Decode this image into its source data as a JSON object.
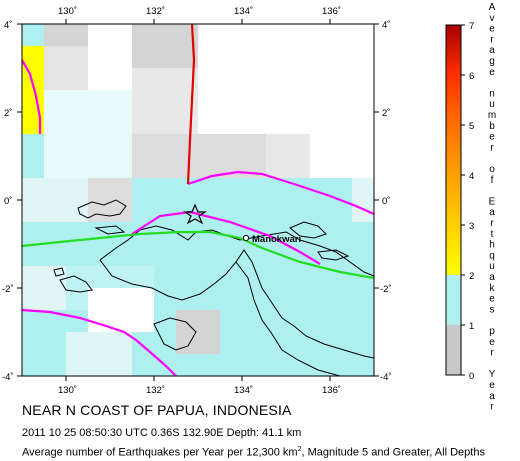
{
  "map": {
    "lon_ticks": [
      "130˚",
      "132˚",
      "134˚",
      "136˚"
    ],
    "lat_ticks": [
      "4˚",
      "2˚",
      "0˚",
      "-2˚",
      "-4˚"
    ],
    "place_label": "Manokwari",
    "colors": {
      "cell_low": "#c8c8c8",
      "cell_mid": "#aef0f0",
      "cell_high": "#ffff00",
      "plate_boundary": "#ff00ff",
      "fault": "#00e000",
      "trench": "#e00000",
      "coast": "#000000"
    },
    "epicenter_icon": "star-icon",
    "city_icon": "circle-icon"
  },
  "legend": {
    "ticks": [
      "7",
      "6",
      "5",
      "4",
      "3",
      "2",
      "1",
      "0"
    ],
    "title_chars": [
      "A",
      "v",
      "e",
      "r",
      "a",
      "g",
      "e",
      "",
      "n",
      "u",
      "m",
      "b",
      "e",
      "r",
      "",
      "o",
      "f",
      "",
      "E",
      "a",
      "r",
      "t",
      "h",
      "q",
      "u",
      "a",
      "k",
      "e",
      "s",
      "",
      "p",
      "e",
      "r",
      "",
      "Y",
      "e",
      "a",
      "r"
    ],
    "scale_colors": [
      "#a80000",
      "#d80000",
      "#ff3000",
      "#ff7000",
      "#ffa000",
      "#ffd000",
      "#ffff00",
      "#aef0f0",
      "#c8c8c8"
    ]
  },
  "caption": {
    "title": "NEAR N COAST OF PAPUA, INDONESIA",
    "event_line": "2011 10 25 08:50:30 UTC 0.36S 132.90E Depth: 41.1 km",
    "subtitle_pre": "Average number of Earthquakes per Year per 12,300 km",
    "subtitle_sup": "2",
    "subtitle_post": ", Magnitude 5 and Greater, All Depths"
  }
}
